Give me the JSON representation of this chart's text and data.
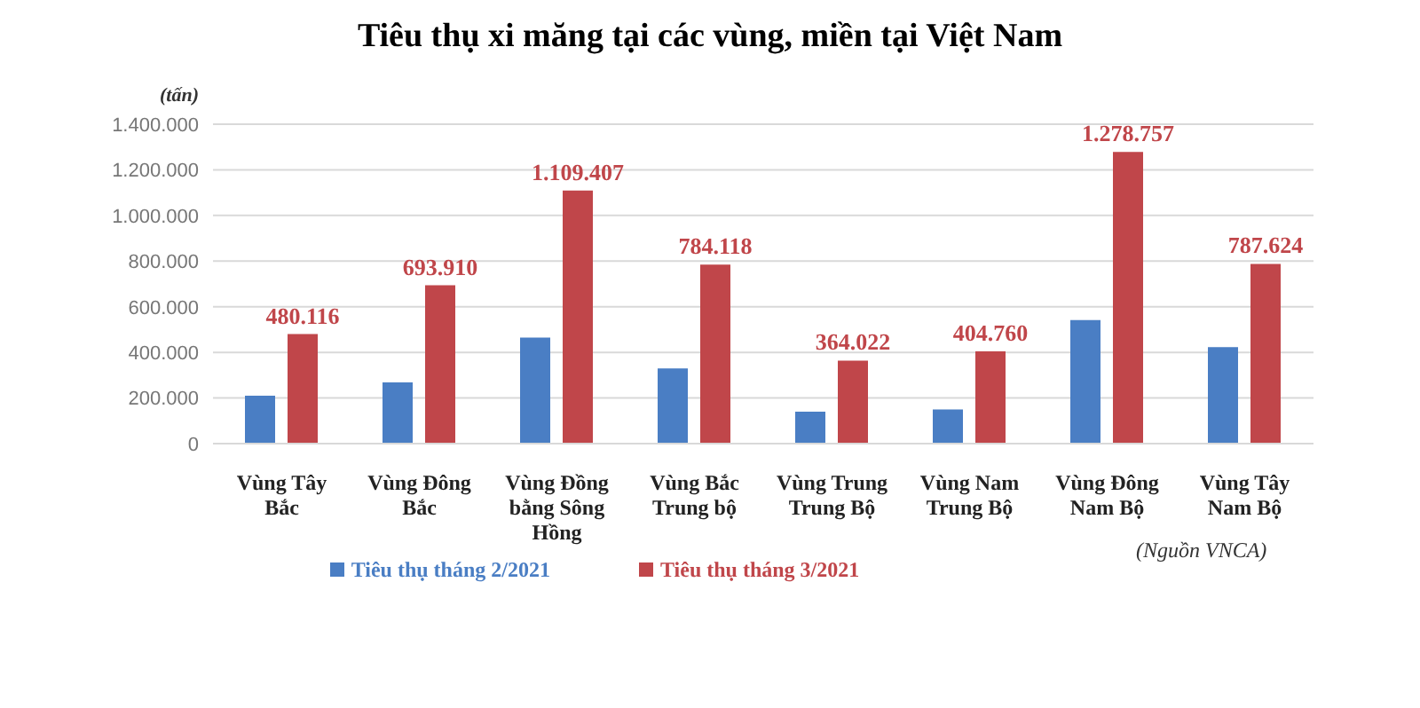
{
  "chart_data": {
    "type": "bar",
    "title": "Tiêu thụ xi măng tại các vùng, miền tại Việt Nam",
    "ylabel": "(tấn)",
    "categories": [
      "Vùng Tây Bắc",
      "Vùng Đông Bắc",
      "Vùng Đồng bằng Sông Hồng",
      "Vùng Bắc Trung bộ",
      "Vùng Trung Trung Bộ",
      "Vùng Nam Trung Bộ",
      "Vùng Đông Nam Bộ",
      "Vùng Tây Nam Bộ"
    ],
    "series": [
      {
        "name": "Tiêu thụ tháng 2/2021",
        "color": "#4a7ec4",
        "values": [
          210000,
          268000,
          465000,
          330000,
          140000,
          150000,
          542000,
          423000
        ]
      },
      {
        "name": "Tiêu thụ tháng 3/2021",
        "color": "#c0464a",
        "values": [
          480116,
          693910,
          1109407,
          784118,
          364022,
          404760,
          1278757,
          787624
        ],
        "value_labels": [
          "480.116",
          "693.910",
          "1.109.407",
          "784.118",
          "364.022",
          "404.760",
          "1.278.757",
          "787.624"
        ]
      }
    ],
    "ylim": [
      0,
      1400000
    ],
    "yticks": [
      {
        "value": 0,
        "label": "0"
      },
      {
        "value": 200000,
        "label": "200.000"
      },
      {
        "value": 400000,
        "label": "400.000"
      },
      {
        "value": 600000,
        "label": "600.000"
      },
      {
        "value": 800000,
        "label": "800.000"
      },
      {
        "value": 1000000,
        "label": "1.000.000"
      },
      {
        "value": 1200000,
        "label": "1.200.000"
      },
      {
        "value": 1400000,
        "label": "1.400.000"
      }
    ],
    "grid": "y",
    "legend": "bottom",
    "annotations": [
      "(Nguồn VNCA)"
    ]
  }
}
